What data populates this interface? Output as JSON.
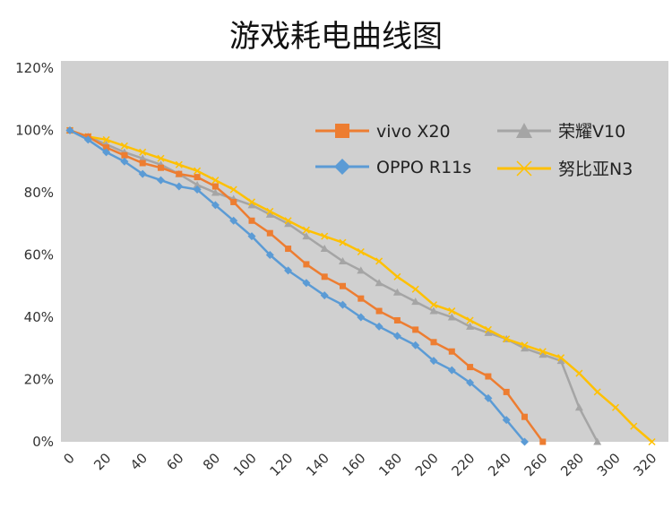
{
  "chart_data": {
    "type": "line",
    "title": "游戏耗电曲线图",
    "xlabel": "",
    "ylabel": "",
    "xlim": [
      0,
      320
    ],
    "ylim": [
      0,
      120
    ],
    "x_ticks": [
      "0",
      "20",
      "40",
      "60",
      "80",
      "100",
      "120",
      "140",
      "160",
      "180",
      "200",
      "220",
      "240",
      "260",
      "280",
      "300",
      "320"
    ],
    "y_ticks": [
      "0%",
      "20%",
      "40%",
      "60%",
      "80%",
      "100%",
      "120%"
    ],
    "grid": false,
    "legend_placement": "top-right",
    "background_color": "#d0d0d0",
    "series": [
      {
        "name": "vivo X20",
        "color": "#ed7d31",
        "marker": "square",
        "x": [
          0,
          10,
          20,
          30,
          40,
          50,
          60,
          70,
          80,
          90,
          100,
          110,
          120,
          130,
          140,
          150,
          160,
          170,
          180,
          190,
          200,
          210,
          220,
          230,
          240,
          250,
          260
        ],
        "values": [
          100,
          98,
          94.5,
          92,
          89.5,
          88,
          86,
          85,
          82,
          77,
          71,
          67,
          62,
          57,
          53,
          50,
          46,
          42,
          39,
          36,
          32,
          29,
          24,
          21,
          16,
          8,
          0
        ]
      },
      {
        "name": "荣耀V10",
        "color": "#a5a5a5",
        "marker": "triangle",
        "x": [
          0,
          10,
          20,
          30,
          40,
          50,
          60,
          70,
          80,
          90,
          100,
          110,
          120,
          130,
          140,
          150,
          160,
          170,
          180,
          190,
          200,
          210,
          220,
          230,
          240,
          250,
          260,
          270,
          280,
          290
        ],
        "values": [
          100,
          98,
          95.5,
          93,
          91,
          89,
          86,
          82.5,
          80,
          78,
          76,
          73,
          70,
          66,
          62,
          58,
          55,
          51,
          48,
          45,
          42,
          40,
          37,
          35,
          33,
          30,
          28,
          26,
          11,
          0
        ]
      },
      {
        "name": "OPPO R11s",
        "color": "#5b9bd5",
        "marker": "diamond",
        "x": [
          0,
          10,
          20,
          30,
          40,
          50,
          60,
          70,
          80,
          90,
          100,
          110,
          120,
          130,
          140,
          150,
          160,
          170,
          180,
          190,
          200,
          210,
          220,
          230,
          240,
          250
        ],
        "values": [
          100,
          97,
          93,
          90,
          86,
          84,
          82,
          81,
          76,
          71,
          66,
          60,
          55,
          51,
          47,
          44,
          40,
          37,
          34,
          31,
          26,
          23,
          19,
          14,
          7,
          0
        ]
      },
      {
        "name": "努比亚N3",
        "color": "#ffc000",
        "marker": "x",
        "x": [
          0,
          10,
          20,
          30,
          40,
          50,
          60,
          70,
          80,
          90,
          100,
          110,
          120,
          130,
          140,
          150,
          160,
          170,
          180,
          190,
          200,
          210,
          220,
          230,
          240,
          250,
          260,
          270,
          280,
          290,
          300,
          310,
          320
        ],
        "values": [
          100,
          98,
          97,
          95,
          93,
          91,
          89,
          87,
          84,
          81,
          77,
          74,
          71,
          68,
          66,
          64,
          61,
          58,
          53,
          49,
          44,
          42,
          39,
          36,
          33,
          31,
          29,
          27,
          22,
          16,
          11,
          5,
          0
        ]
      }
    ]
  }
}
